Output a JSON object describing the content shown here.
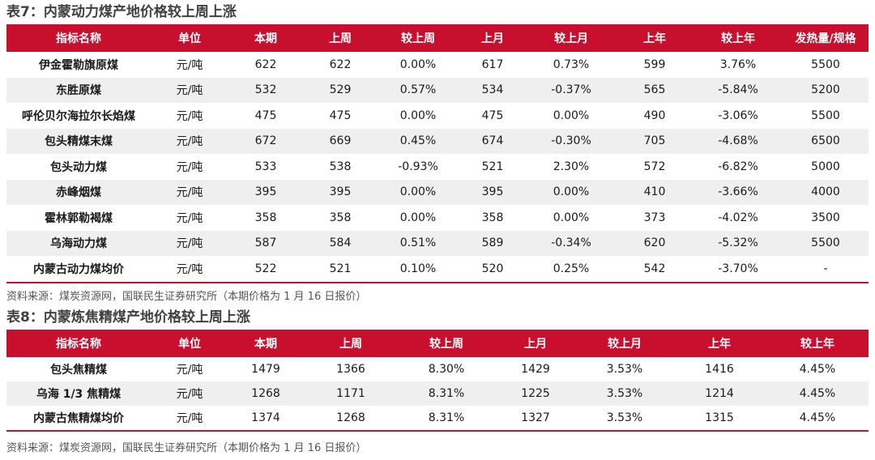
{
  "table1": {
    "title": "表7：内蒙动力煤产地价格较上周上涨",
    "headers": [
      "指标名称",
      "单位",
      "本期",
      "上周",
      "较上周",
      "上月",
      "较上月",
      "上年",
      "较上年",
      "发热量/规格"
    ],
    "rows": [
      [
        "伊金霍勒旗原煤",
        "元/吨",
        "622",
        "622",
        "0.00%",
        "617",
        "0.73%",
        "599",
        "3.76%",
        "5500"
      ],
      [
        "东胜原煤",
        "元/吨",
        "532",
        "529",
        "0.57%",
        "534",
        "-0.37%",
        "565",
        "-5.84%",
        "5200"
      ],
      [
        "呼伦贝尔海拉尔长焰煤",
        "元/吨",
        "475",
        "475",
        "0.00%",
        "475",
        "0.00%",
        "490",
        "-3.06%",
        "5500"
      ],
      [
        "包头精煤末煤",
        "元/吨",
        "672",
        "669",
        "0.45%",
        "674",
        "-0.30%",
        "705",
        "-4.68%",
        "6500"
      ],
      [
        "包头动力煤",
        "元/吨",
        "533",
        "538",
        "-0.93%",
        "521",
        "2.30%",
        "572",
        "-6.82%",
        "5000"
      ],
      [
        "赤峰烟煤",
        "元/吨",
        "395",
        "395",
        "0.00%",
        "395",
        "0.00%",
        "410",
        "-3.66%",
        "4000"
      ],
      [
        "霍林郭勒褐煤",
        "元/吨",
        "358",
        "358",
        "0.00%",
        "358",
        "0.00%",
        "373",
        "-4.02%",
        "3500"
      ],
      [
        "乌海动力煤",
        "元/吨",
        "587",
        "584",
        "0.51%",
        "589",
        "-0.34%",
        "620",
        "-5.32%",
        "5500"
      ],
      [
        "内蒙古动力煤均价",
        "元/吨",
        "522",
        "521",
        "0.10%",
        "520",
        "0.25%",
        "542",
        "-3.70%",
        "-"
      ]
    ],
    "source": "资料来源：煤炭资源网，国联民生证券研究所（本期价格为 1 月 16 日报价）"
  },
  "table2": {
    "title": "表8：内蒙炼焦精煤产地价格较上周上涨",
    "headers": [
      "指标名称",
      "单位",
      "本期",
      "上周",
      "较上周",
      "上月",
      "较上月",
      "上年",
      "较上年"
    ],
    "rows": [
      [
        "包头焦精煤",
        "元/吨",
        "1479",
        "1366",
        "8.30%",
        "1429",
        "3.53%",
        "1416",
        "4.45%"
      ],
      [
        "乌海 1/3 焦精煤",
        "元/吨",
        "1268",
        "1171",
        "8.31%",
        "1225",
        "3.53%",
        "1214",
        "4.45%"
      ],
      [
        "内蒙古焦精煤均价",
        "元/吨",
        "1374",
        "1268",
        "8.31%",
        "1327",
        "3.53%",
        "1315",
        "4.45%"
      ]
    ],
    "source": "资料来源：煤炭资源网，国联民生证券研究所（本期价格为 1 月 16 日报价）"
  },
  "colors": {
    "header_bg": "#c8102e",
    "stripe": "#efefef"
  }
}
